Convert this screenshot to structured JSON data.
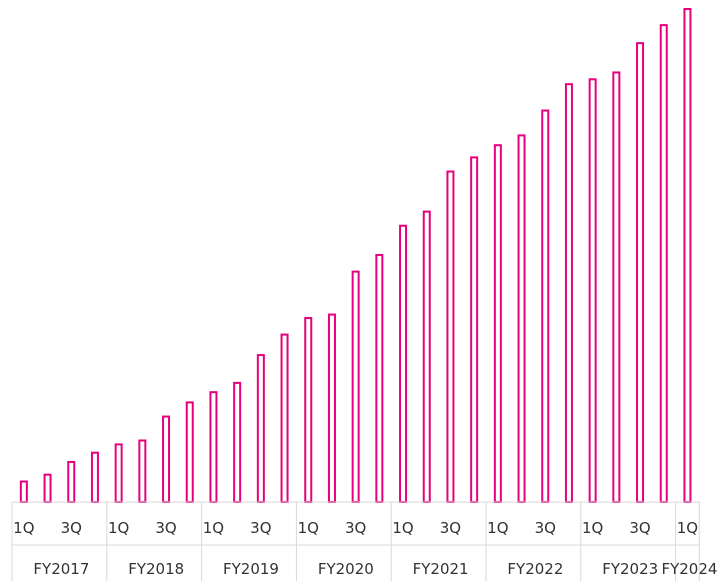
{
  "chart_data": {
    "type": "bar",
    "title": "",
    "xlabel": "",
    "ylabel": "",
    "bar_color": "#e6007e",
    "fill_color": "#ffffff",
    "grid": false,
    "legend": "none",
    "ylim": [
      0,
      100
    ],
    "groups": [
      {
        "label": "FY2017",
        "quarters": [
          "1Q",
          "",
          "3Q",
          ""
        ],
        "values": [
          4.2,
          5.6,
          8.2,
          10.1
        ]
      },
      {
        "label": "FY2018",
        "quarters": [
          "1Q",
          "",
          "3Q",
          ""
        ],
        "values": [
          11.8,
          12.6,
          17.5,
          20.4
        ]
      },
      {
        "label": "FY2019",
        "quarters": [
          "1Q",
          "",
          "3Q",
          ""
        ],
        "values": [
          22.5,
          24.4,
          30.1,
          34.3
        ]
      },
      {
        "label": "FY2020",
        "quarters": [
          "1Q",
          "",
          "3Q",
          ""
        ],
        "values": [
          37.7,
          38.4,
          47.2,
          50.6
        ]
      },
      {
        "label": "FY2021",
        "quarters": [
          "1Q",
          "",
          "3Q",
          ""
        ],
        "values": [
          56.6,
          59.5,
          67.7,
          70.6
        ]
      },
      {
        "label": "FY2022",
        "quarters": [
          "1Q",
          "",
          "3Q",
          ""
        ],
        "values": [
          73.1,
          75.1,
          80.2,
          85.6
        ]
      },
      {
        "label": "FY2023",
        "quarters": [
          "1Q",
          "",
          "3Q",
          ""
        ],
        "values": [
          86.6,
          88.0,
          94.0,
          97.7
        ]
      },
      {
        "label": "FY2024",
        "quarters": [
          "1Q"
        ],
        "values": [
          101.0
        ]
      }
    ]
  }
}
